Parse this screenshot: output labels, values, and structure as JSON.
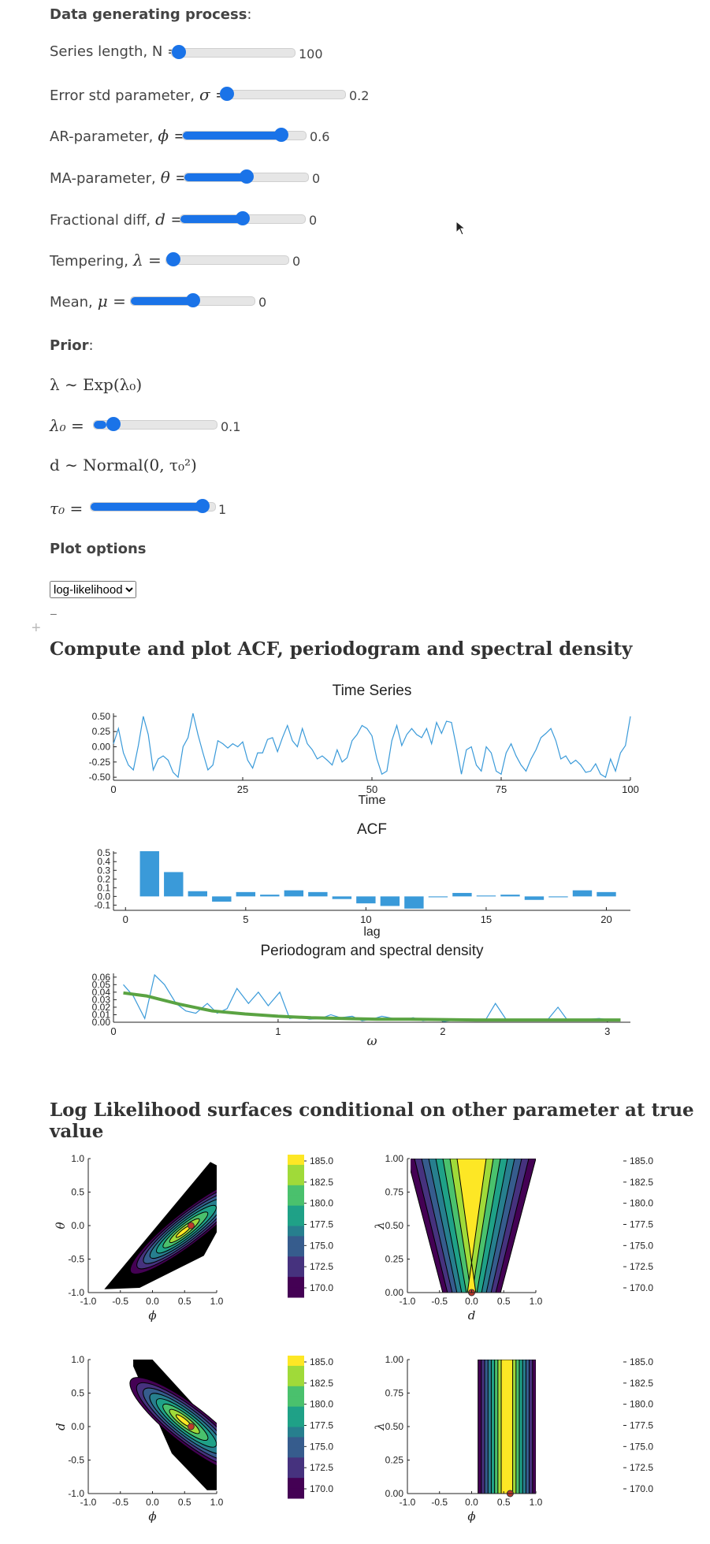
{
  "dgp": {
    "heading": "Data generating process",
    "sliders": [
      {
        "label": "Series length, N =",
        "value": "100",
        "frac": 0.0
      },
      {
        "label": "Error std parameter,",
        "sym": "σ =",
        "value": "0.2",
        "frac": 0.05
      },
      {
        "label": "AR-parameter,",
        "sym": "ϕ =",
        "value": "0.6",
        "frac": 0.8
      },
      {
        "label": "MA-parameter,",
        "sym": "θ =",
        "value": "0",
        "frac": 0.5
      },
      {
        "label": "Fractional diff,",
        "sym": "d =",
        "value": "0",
        "frac": 0.5
      },
      {
        "label": "Tempering,",
        "sym": "λ =",
        "value": "0",
        "frac": 0.0
      },
      {
        "label": "Mean,",
        "sym": "μ =",
        "value": "0",
        "frac": 0.5
      }
    ]
  },
  "prior": {
    "heading": "Prior",
    "lambda_dist": "λ ∼ Exp(λ₀)",
    "lambda0": {
      "label": "λ₀ =",
      "value": "0.1",
      "frac": 0.1
    },
    "d_dist": "d ∼ Normal(0, τ₀²)",
    "tau0": {
      "label": "τ₀ =",
      "value": "1",
      "frac": 0.9
    }
  },
  "plot_options": {
    "heading": "Plot options",
    "selected": "log-likelihood",
    "dash": "–",
    "plus": "+"
  },
  "section1": "Compute and plot ACF, periodogram and spectral density",
  "section2": "Log Likelihood surfaces conditional on other parameter at true value",
  "colors": {
    "accent": "#1a73e8",
    "series": "#3a9ad9",
    "spectral": "#5aa342",
    "point": "#c0392b"
  },
  "chart_data": [
    {
      "type": "line",
      "title": "Time Series",
      "xlabel": "Time",
      "ylabel": "",
      "xlim": [
        0,
        100
      ],
      "ylim": [
        -0.55,
        0.55
      ],
      "xticks": [
        "0",
        "25",
        "50",
        "75",
        "100"
      ],
      "yticks": [
        "0.50",
        "0.25",
        "0.00",
        "-0.25",
        "-0.50"
      ],
      "values": [
        0.05,
        0.3,
        -0.1,
        -0.3,
        -0.38,
        0.02,
        0.5,
        0.2,
        -0.38,
        -0.2,
        -0.15,
        -0.22,
        -0.42,
        -0.5,
        0.0,
        0.15,
        0.55,
        0.2,
        -0.1,
        -0.38,
        -0.3,
        0.1,
        0.05,
        -0.02,
        0.05,
        0.0,
        0.08,
        -0.22,
        -0.35,
        -0.1,
        -0.1,
        0.12,
        0.15,
        -0.08,
        0.15,
        0.35,
        0.1,
        0.0,
        0.3,
        0.05,
        -0.05,
        -0.2,
        -0.15,
        -0.22,
        -0.3,
        -0.05,
        -0.25,
        -0.18,
        0.1,
        0.2,
        0.35,
        0.3,
        0.18,
        -0.2,
        -0.45,
        -0.4,
        0.1,
        0.35,
        0.02,
        0.2,
        0.3,
        0.2,
        0.15,
        0.3,
        0.05,
        0.4,
        0.22,
        0.42,
        0.4,
        0.0,
        -0.45,
        -0.05,
        0.0,
        -0.3,
        -0.4,
        0.0,
        -0.1,
        -0.4,
        -0.45,
        -0.1,
        0.05,
        -0.15,
        -0.3,
        -0.4,
        -0.2,
        -0.05,
        0.15,
        0.22,
        0.3,
        0.1,
        -0.2,
        -0.15,
        -0.28,
        -0.22,
        -0.3,
        -0.42,
        -0.4,
        -0.28,
        -0.45,
        -0.5,
        -0.2,
        -0.4,
        -0.1,
        0.02,
        0.5
      ]
    },
    {
      "type": "bar",
      "title": "ACF",
      "xlabel": "lag",
      "ylabel": "",
      "xlim": [
        -0.5,
        21
      ],
      "ylim": [
        -0.16,
        0.52
      ],
      "xticks": [
        "0",
        "5",
        "10",
        "15",
        "20"
      ],
      "yticks": [
        "0.5",
        "0.4",
        "0.3",
        "0.2",
        "0.1",
        "0.0",
        "-0.1"
      ],
      "x": [
        1,
        2,
        3,
        4,
        5,
        6,
        7,
        8,
        9,
        10,
        11,
        12,
        13,
        14,
        15,
        16,
        17,
        18,
        19,
        20
      ],
      "values": [
        0.52,
        0.28,
        0.06,
        -0.06,
        0.05,
        0.02,
        0.07,
        0.05,
        -0.03,
        -0.08,
        -0.11,
        -0.14,
        -0.01,
        0.04,
        0.01,
        0.02,
        -0.04,
        -0.01,
        0.07,
        0.05
      ]
    },
    {
      "type": "line",
      "title": "Periodogram and spectral density",
      "xlabel": "ω",
      "ylabel": "",
      "xlim": [
        0,
        3.14
      ],
      "ylim": [
        0,
        0.065
      ],
      "xticks": [
        "0",
        "1",
        "2",
        "3"
      ],
      "yticks": [
        "0.06",
        "0.05",
        "0.04",
        "0.03",
        "0.02",
        "0.01",
        "0.00"
      ],
      "series": [
        {
          "x": [
            0.06,
            0.12,
            0.19,
            0.25,
            0.31,
            0.38,
            0.44,
            0.5,
            0.57,
            0.63,
            0.69,
            0.75,
            0.82,
            0.88,
            0.94,
            1.01,
            1.07,
            1.13,
            1.19,
            1.26,
            1.32,
            1.38,
            1.45,
            1.51,
            1.57,
            1.63,
            1.7,
            1.76,
            1.82,
            1.88,
            1.95,
            2.01,
            2.07,
            2.14,
            2.2,
            2.26,
            2.32,
            2.39,
            2.45,
            2.51,
            2.58,
            2.64,
            2.7,
            2.76,
            2.83,
            2.89,
            2.95,
            3.02,
            3.08
          ],
          "values": [
            0.05,
            0.035,
            0.005,
            0.063,
            0.05,
            0.025,
            0.015,
            0.012,
            0.025,
            0.012,
            0.018,
            0.045,
            0.025,
            0.04,
            0.022,
            0.04,
            0.005,
            0.007,
            0.004,
            0.005,
            0.01,
            0.006,
            0.008,
            0.002,
            0.004,
            0.008,
            0.005,
            0.003,
            0.006,
            0.002,
            0.004,
            0.001,
            0.003,
            0.002,
            0.004,
            0.003,
            0.025,
            0.002,
            0.004,
            0.003,
            0.002,
            0.004,
            0.02,
            0.002,
            0.002,
            0.004,
            0.005,
            0.003,
            0.002
          ]
        },
        {
          "x": [
            0.06,
            0.2,
            0.4,
            0.6,
            0.8,
            1.0,
            1.2,
            1.4,
            1.6,
            1.8,
            2.0,
            2.2,
            2.4,
            2.6,
            2.8,
            3.08
          ],
          "values": [
            0.039,
            0.035,
            0.024,
            0.015,
            0.011,
            0.008,
            0.006,
            0.005,
            0.004,
            0.004,
            0.0035,
            0.003,
            0.003,
            0.003,
            0.003,
            0.003
          ]
        }
      ]
    },
    {
      "type": "heatmap",
      "title": "",
      "xlabel": "ϕ",
      "ylabel": "θ",
      "xticks": [
        "-1.0",
        "-0.5",
        "0.0",
        "0.5",
        "1.0"
      ],
      "yticks": [
        "1.0",
        "0.5",
        "0.0",
        "-0.5",
        "-1.0"
      ],
      "colorbar": [
        "185.0",
        "182.5",
        "180.0",
        "177.5",
        "175.0",
        "172.5",
        "170.0"
      ],
      "point": [
        0.6,
        0.0
      ]
    },
    {
      "type": "heatmap",
      "title": "",
      "xlabel": "d",
      "ylabel": "λ",
      "xticks": [
        "-1.0",
        "-0.5",
        "0.0",
        "0.5",
        "1.0"
      ],
      "yticks": [
        "1.00",
        "0.75",
        "0.50",
        "0.25",
        "0.00"
      ],
      "colorbar": [
        "185.0",
        "182.5",
        "180.0",
        "177.5",
        "175.0",
        "172.5",
        "170.0"
      ],
      "point": [
        0.0,
        0.0
      ]
    },
    {
      "type": "heatmap",
      "title": "",
      "xlabel": "ϕ",
      "ylabel": "d",
      "xticks": [
        "-1.0",
        "-0.5",
        "0.0",
        "0.5",
        "1.0"
      ],
      "yticks": [
        "1.0",
        "0.5",
        "0.0",
        "-0.5",
        "-1.0"
      ],
      "colorbar": [
        "185.0",
        "182.5",
        "180.0",
        "177.5",
        "175.0",
        "172.5",
        "170.0"
      ],
      "point": [
        0.6,
        0.0
      ]
    },
    {
      "type": "heatmap",
      "title": "",
      "xlabel": "ϕ",
      "ylabel": "λ",
      "xticks": [
        "-1.0",
        "-0.5",
        "0.0",
        "0.5",
        "1.0"
      ],
      "yticks": [
        "1.00",
        "0.75",
        "0.50",
        "0.25",
        "0.00"
      ],
      "colorbar": [
        "185.0",
        "182.5",
        "180.0",
        "177.5",
        "175.0",
        "172.5",
        "170.0"
      ],
      "point": [
        0.6,
        0.0
      ]
    }
  ]
}
